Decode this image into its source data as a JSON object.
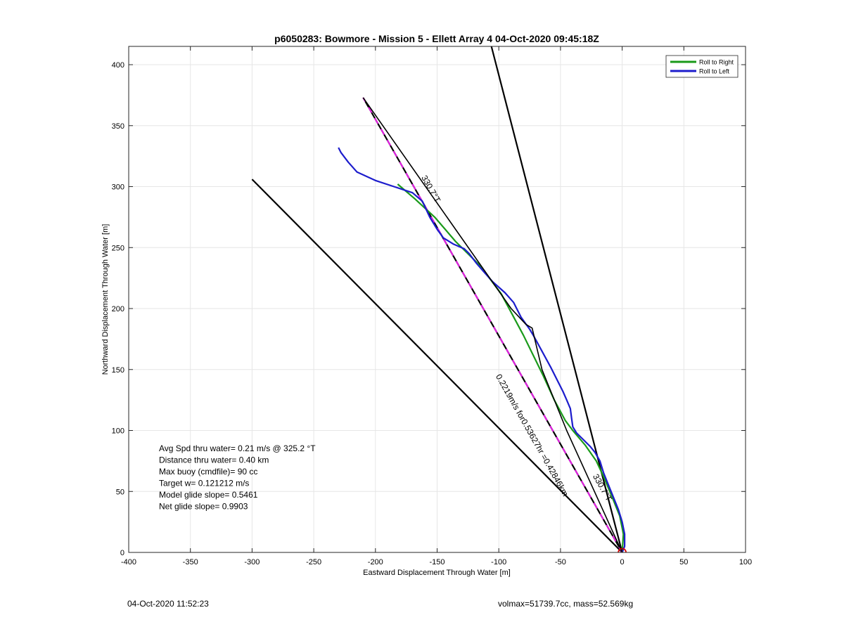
{
  "chart_data": {
    "type": "line",
    "title": "p6050283: Bowmore - Mission 5 - Ellett Array 4 04-Oct-2020 09:45:18Z",
    "xlabel": "Eastward Displacement Through Water [m]",
    "ylabel": "Northward Displacement Through Water [m]",
    "xlim": [
      -400,
      100
    ],
    "ylim": [
      0,
      415
    ],
    "xticks": [
      -400,
      -350,
      -300,
      -250,
      -200,
      -150,
      -100,
      -50,
      0,
      50,
      100
    ],
    "yticks": [
      0,
      50,
      100,
      150,
      200,
      250,
      300,
      350,
      400
    ],
    "grid": true,
    "legend": {
      "placement": "top-right",
      "entries": [
        "Roll to Right",
        "Roll to Left"
      ]
    },
    "series": [
      {
        "name": "Roll to Right",
        "color": "#1a9a1a",
        "points": [
          [
            0,
            0
          ],
          [
            1,
            15
          ],
          [
            -2,
            30
          ],
          [
            -8,
            45
          ],
          [
            -15,
            62
          ],
          [
            -21,
            75
          ],
          [
            -30,
            88
          ],
          [
            -40,
            100
          ],
          [
            -46,
            108
          ],
          [
            -55,
            125
          ],
          [
            -64,
            145
          ],
          [
            -80,
            178
          ],
          [
            -98,
            212
          ],
          [
            -115,
            235
          ],
          [
            -135,
            255
          ],
          [
            -152,
            275
          ],
          [
            -168,
            290
          ],
          [
            -182,
            302
          ]
        ]
      },
      {
        "name": "Roll to Left",
        "color": "#1c1ccc",
        "points": [
          [
            0,
            0
          ],
          [
            2,
            5
          ],
          [
            2,
            15
          ],
          [
            0,
            25
          ],
          [
            -3,
            35
          ],
          [
            -7,
            45
          ],
          [
            -11,
            55
          ],
          [
            -15,
            65
          ],
          [
            -18,
            75
          ],
          [
            -22,
            82
          ],
          [
            -26,
            87
          ],
          [
            -31,
            92
          ],
          [
            -37,
            98
          ],
          [
            -40,
            103
          ],
          [
            -41,
            110
          ],
          [
            -42,
            118
          ],
          [
            -45,
            125
          ],
          [
            -48,
            132
          ],
          [
            -52,
            140
          ],
          [
            -58,
            152
          ],
          [
            -65,
            165
          ],
          [
            -72,
            178
          ],
          [
            -75,
            183
          ],
          [
            -82,
            193
          ],
          [
            -88,
            205
          ],
          [
            -95,
            213
          ],
          [
            -105,
            222
          ],
          [
            -112,
            230
          ],
          [
            -118,
            237
          ],
          [
            -124,
            245
          ],
          [
            -128,
            249
          ],
          [
            -137,
            253
          ],
          [
            -145,
            258
          ],
          [
            -150,
            265
          ],
          [
            -156,
            275
          ],
          [
            -162,
            288
          ],
          [
            -170,
            295
          ],
          [
            -185,
            300
          ],
          [
            -200,
            305
          ],
          [
            -215,
            312
          ],
          [
            -222,
            320
          ],
          [
            -228,
            328
          ],
          [
            -230,
            332
          ]
        ]
      },
      {
        "name": "",
        "color": "#000000",
        "points": [
          [
            0,
            0
          ],
          [
            -45,
            100
          ],
          [
            -65,
            150
          ],
          [
            -73,
            184
          ],
          [
            -78,
            187
          ],
          [
            -90,
            200
          ],
          [
            -210,
            373
          ]
        ]
      }
    ],
    "guide_lines": [
      {
        "color": "#000000",
        "from": [
          0,
          0
        ],
        "to": [
          -106,
          415
        ],
        "label": ""
      },
      {
        "color": "#000000",
        "from": [
          0,
          0
        ],
        "to": [
          -300,
          306
        ],
        "label": ""
      },
      {
        "color": "#000000",
        "dash_color": "#e020e0",
        "from": [
          0,
          0
        ],
        "to": [
          -210,
          373
        ],
        "label": "330.7°T"
      }
    ],
    "line_labels": [
      {
        "text": "330.7°T",
        "at": [
          -157,
          297
        ],
        "angle": 60.6
      },
      {
        "text": "330.7°T",
        "at": [
          -18,
          52
        ],
        "angle": 60.6
      },
      {
        "text": "0.2219m/s for0.53627hr =0.42846km",
        "at": [
          -75,
          95
        ],
        "angle": 60.6
      }
    ],
    "annotations": [
      "Avg Spd thru water=  0.21 m/s @ 325.2 °T",
      "Distance thru water=  0.40 km",
      "Max buoy (cmdfile)= 90 cc",
      "Target w= 0.121212 m/s",
      "Model glide slope= 0.5461",
      "Net glide slope= 0.9903"
    ],
    "start_marker": {
      "at": [
        0,
        0
      ],
      "color": "#dd0000",
      "shape": "circle"
    }
  },
  "footer": {
    "left": "04-Oct-2020 11:52:23",
    "right": "volmax=51739.7cc, mass=52.569kg"
  }
}
